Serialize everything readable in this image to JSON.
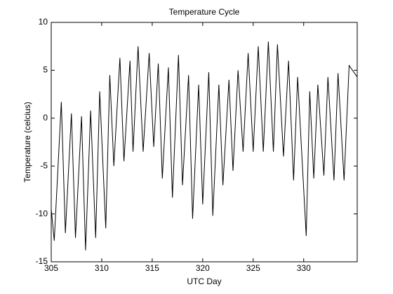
{
  "chart_data": {
    "type": "line",
    "title": "Temperature Cycle",
    "xlabel": "UTC Day",
    "ylabel": "Temperature (celcius)",
    "x": [
      305.0,
      305.3,
      306.0,
      306.4,
      307.0,
      307.4,
      308.0,
      308.4,
      308.9,
      309.4,
      309.8,
      310.4,
      310.8,
      311.2,
      311.8,
      312.2,
      312.8,
      313.1,
      313.6,
      314.1,
      314.7,
      315.15,
      315.6,
      316.0,
      316.6,
      317.0,
      317.6,
      318.0,
      318.6,
      319.0,
      319.6,
      320.0,
      320.6,
      321.0,
      321.6,
      322.0,
      322.6,
      323.0,
      323.5,
      324.0,
      324.5,
      325.0,
      325.5,
      326.0,
      326.5,
      327.0,
      327.4,
      328.0,
      328.5,
      329.0,
      329.4,
      330.25,
      330.6,
      331.0,
      331.4,
      332.0,
      332.4,
      333.0,
      333.4,
      334.0,
      334.5,
      335.3
    ],
    "series": [
      {
        "name": "Temperature",
        "color": "#000000",
        "values": [
          -9.5,
          -12.8,
          1.7,
          -12,
          0.5,
          -12.5,
          0.2,
          -13.8,
          0.8,
          -12.5,
          2.8,
          -11.5,
          4.5,
          -5,
          6.3,
          -4.5,
          6.0,
          -3.5,
          7.5,
          -3.5,
          6.8,
          -3,
          5.7,
          -6.3,
          5.3,
          -8.3,
          6.6,
          -7,
          4.5,
          -10.5,
          3.5,
          -9,
          4.8,
          -10.2,
          3.5,
          -7,
          4.0,
          -5.5,
          5.0,
          -3.5,
          6.8,
          -3.5,
          7.5,
          -3.5,
          8.0,
          -3.5,
          7.7,
          -4,
          6.0,
          -6.5,
          4.3,
          -12.3,
          2.8,
          -6.3,
          3.5,
          -6,
          4.3,
          -6.5,
          4.7,
          -6.5,
          5.5,
          4.3
        ]
      }
    ],
    "xlim": [
      305,
      335.3
    ],
    "ylim": [
      -15,
      10
    ],
    "xticks": [
      305,
      310,
      315,
      320,
      325,
      330
    ],
    "yticks": [
      -15,
      -10,
      -5,
      0,
      5,
      10
    ]
  }
}
